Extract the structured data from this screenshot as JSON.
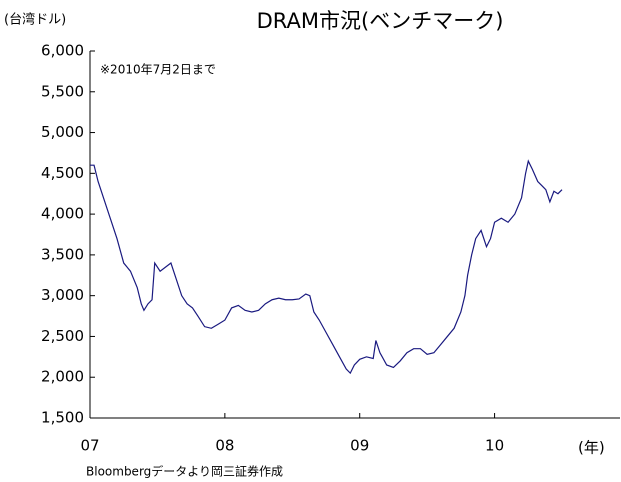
{
  "chart_data": {
    "type": "line",
    "title": "DRAM市況(ベンチマーク)",
    "y_label": "(台湾ドル)",
    "x_label": "(年)",
    "annotation": "※2010年7月2日まで",
    "source": "Bloombergデータより岡三証券作成",
    "x": [
      2007.0,
      2007.03,
      2007.06,
      2007.1,
      2007.15,
      2007.2,
      2007.25,
      2007.3,
      2007.35,
      2007.38,
      2007.4,
      2007.43,
      2007.46,
      2007.48,
      2007.52,
      2007.56,
      2007.6,
      2007.64,
      2007.68,
      2007.72,
      2007.76,
      2007.8,
      2007.85,
      2007.9,
      2007.95,
      2008.0,
      2008.05,
      2008.1,
      2008.15,
      2008.2,
      2008.25,
      2008.3,
      2008.35,
      2008.4,
      2008.45,
      2008.5,
      2008.55,
      2008.6,
      2008.63,
      2008.66,
      2008.7,
      2008.75,
      2008.8,
      2008.85,
      2008.9,
      2008.93,
      2008.96,
      2009.0,
      2009.05,
      2009.1,
      2009.12,
      2009.15,
      2009.2,
      2009.25,
      2009.3,
      2009.35,
      2009.4,
      2009.45,
      2009.5,
      2009.55,
      2009.6,
      2009.65,
      2009.7,
      2009.75,
      2009.78,
      2009.8,
      2009.83,
      2009.86,
      2009.9,
      2009.94,
      2009.97,
      2010.0,
      2010.05,
      2010.1,
      2010.15,
      2010.2,
      2010.23,
      2010.25,
      2010.28,
      2010.32,
      2010.35,
      2010.38,
      2010.41,
      2010.44,
      2010.47,
      2010.5
    ],
    "series": [
      {
        "name": "DRAM",
        "color": "#1a1a80",
        "values": [
          4600,
          4600,
          4400,
          4200,
          3950,
          3700,
          3400,
          3300,
          3100,
          2900,
          2820,
          2900,
          2950,
          3400,
          3300,
          3350,
          3400,
          3200,
          3000,
          2900,
          2850,
          2750,
          2620,
          2600,
          2650,
          2700,
          2850,
          2880,
          2820,
          2800,
          2820,
          2900,
          2950,
          2970,
          2950,
          2950,
          2960,
          3020,
          3000,
          2800,
          2700,
          2550,
          2400,
          2250,
          2100,
          2050,
          2150,
          2220,
          2250,
          2230,
          2450,
          2300,
          2150,
          2120,
          2200,
          2300,
          2350,
          2350,
          2280,
          2300,
          2400,
          2500,
          2600,
          2800,
          3000,
          3250,
          3500,
          3700,
          3800,
          3600,
          3700,
          3900,
          3950,
          3900,
          4000,
          4200,
          4500,
          4650,
          4550,
          4400,
          4350,
          4300,
          4150,
          4280,
          4250,
          4300
        ]
      }
    ],
    "xlim": [
      2007,
      2010.93
    ],
    "xticks": [
      {
        "value": 2007,
        "label": "07"
      },
      {
        "value": 2008,
        "label": "08"
      },
      {
        "value": 2009,
        "label": "09"
      },
      {
        "value": 2010,
        "label": "10"
      }
    ],
    "ylim": [
      1500,
      6000
    ],
    "yticks": [
      {
        "value": 1500,
        "label": "1,500"
      },
      {
        "value": 2000,
        "label": "2,000"
      },
      {
        "value": 2500,
        "label": "2,500"
      },
      {
        "value": 3000,
        "label": "3,000"
      },
      {
        "value": 3500,
        "label": "3,500"
      },
      {
        "value": 4000,
        "label": "4,000"
      },
      {
        "value": 4500,
        "label": "4,500"
      },
      {
        "value": 5000,
        "label": "5,000"
      },
      {
        "value": 5500,
        "label": "5,500"
      },
      {
        "value": 6000,
        "label": "6,000"
      }
    ]
  }
}
